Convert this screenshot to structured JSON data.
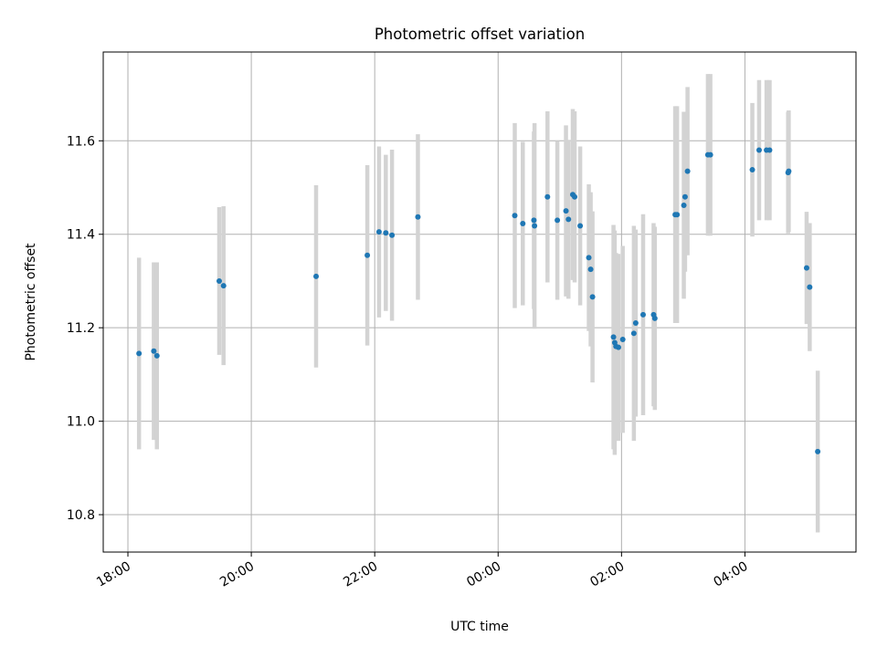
{
  "chart_data": {
    "type": "scatter",
    "title": "Photometric offset variation",
    "xlabel": "UTC time",
    "ylabel": "Photometric offset",
    "x_unit": "hours since 00:00 UTC (negative = previous evening)",
    "xlim": [
      -6.4,
      5.8
    ],
    "ylim": [
      10.72,
      11.79
    ],
    "x_ticks": [
      {
        "value": -6,
        "label": "18:00"
      },
      {
        "value": -4,
        "label": "20:00"
      },
      {
        "value": -2,
        "label": "22:00"
      },
      {
        "value": 0,
        "label": "00:00"
      },
      {
        "value": 2,
        "label": "02:00"
      },
      {
        "value": 4,
        "label": "04:00"
      }
    ],
    "y_ticks": [
      {
        "value": 10.8,
        "label": "10.8"
      },
      {
        "value": 11.0,
        "label": "11.0"
      },
      {
        "value": 11.2,
        "label": "11.2"
      },
      {
        "value": 11.4,
        "label": "11.4"
      },
      {
        "value": 11.6,
        "label": "11.6"
      }
    ],
    "grid": true,
    "colors": {
      "point": "#1f77b4",
      "errorbar": "#d3d3d3",
      "grid": "#b0b0b0"
    },
    "series": [
      {
        "points": [
          {
            "x": -5.82,
            "y": 11.145,
            "err": 0.205
          },
          {
            "x": -5.58,
            "y": 11.15,
            "err": 0.19
          },
          {
            "x": -5.53,
            "y": 11.14,
            "err": 0.2
          },
          {
            "x": -4.52,
            "y": 11.3,
            "err": 0.158
          },
          {
            "x": -4.45,
            "y": 11.29,
            "err": 0.17
          },
          {
            "x": -2.95,
            "y": 11.31,
            "err": 0.195
          },
          {
            "x": -2.12,
            "y": 11.355,
            "err": 0.193
          },
          {
            "x": -1.93,
            "y": 11.405,
            "err": 0.183
          },
          {
            "x": -1.82,
            "y": 11.403,
            "err": 0.167
          },
          {
            "x": -1.72,
            "y": 11.398,
            "err": 0.183
          },
          {
            "x": -1.3,
            "y": 11.437,
            "err": 0.177
          },
          {
            "x": 0.27,
            "y": 11.44,
            "err": 0.198
          },
          {
            "x": 0.4,
            "y": 11.423,
            "err": 0.175
          },
          {
            "x": 0.58,
            "y": 11.43,
            "err": 0.19
          },
          {
            "x": 0.59,
            "y": 11.418,
            "err": 0.22
          },
          {
            "x": 0.8,
            "y": 11.48,
            "err": 0.183
          },
          {
            "x": 0.96,
            "y": 11.43,
            "err": 0.17
          },
          {
            "x": 1.1,
            "y": 11.45,
            "err": 0.183
          },
          {
            "x": 1.14,
            "y": 11.432,
            "err": 0.17
          },
          {
            "x": 1.21,
            "y": 11.485,
            "err": 0.183
          },
          {
            "x": 1.24,
            "y": 11.48,
            "err": 0.183
          },
          {
            "x": 1.33,
            "y": 11.418,
            "err": 0.17
          },
          {
            "x": 1.47,
            "y": 11.35,
            "err": 0.157
          },
          {
            "x": 1.5,
            "y": 11.325,
            "err": 0.165
          },
          {
            "x": 1.53,
            "y": 11.266,
            "err": 0.183
          },
          {
            "x": 1.87,
            "y": 11.18,
            "err": 0.24
          },
          {
            "x": 1.89,
            "y": 11.168,
            "err": 0.24
          },
          {
            "x": 1.91,
            "y": 11.16,
            "err": 0.2
          },
          {
            "x": 1.95,
            "y": 11.158,
            "err": 0.2
          },
          {
            "x": 2.02,
            "y": 11.175,
            "err": 0.2
          },
          {
            "x": 2.2,
            "y": 11.188,
            "err": 0.23
          },
          {
            "x": 2.23,
            "y": 11.21,
            "err": 0.2
          },
          {
            "x": 2.35,
            "y": 11.228,
            "err": 0.215
          },
          {
            "x": 2.52,
            "y": 11.228,
            "err": 0.196
          },
          {
            "x": 2.54,
            "y": 11.22,
            "err": 0.196
          },
          {
            "x": 2.87,
            "y": 11.442,
            "err": 0.232
          },
          {
            "x": 2.9,
            "y": 11.442,
            "err": 0.232
          },
          {
            "x": 3.01,
            "y": 11.462,
            "err": 0.2
          },
          {
            "x": 3.03,
            "y": 11.48,
            "err": 0.16
          },
          {
            "x": 3.07,
            "y": 11.535,
            "err": 0.18
          },
          {
            "x": 3.4,
            "y": 11.57,
            "err": 0.173
          },
          {
            "x": 3.44,
            "y": 11.57,
            "err": 0.173
          },
          {
            "x": 4.12,
            "y": 11.538,
            "err": 0.143
          },
          {
            "x": 4.23,
            "y": 11.58,
            "err": 0.15
          },
          {
            "x": 4.35,
            "y": 11.58,
            "err": 0.15
          },
          {
            "x": 4.4,
            "y": 11.58,
            "err": 0.15
          },
          {
            "x": 4.7,
            "y": 11.532,
            "err": 0.13
          },
          {
            "x": 4.71,
            "y": 11.535,
            "err": 0.13
          },
          {
            "x": 5.0,
            "y": 11.328,
            "err": 0.12
          },
          {
            "x": 5.05,
            "y": 11.287,
            "err": 0.137
          },
          {
            "x": 5.18,
            "y": 10.935,
            "err": 0.173
          }
        ]
      }
    ]
  }
}
